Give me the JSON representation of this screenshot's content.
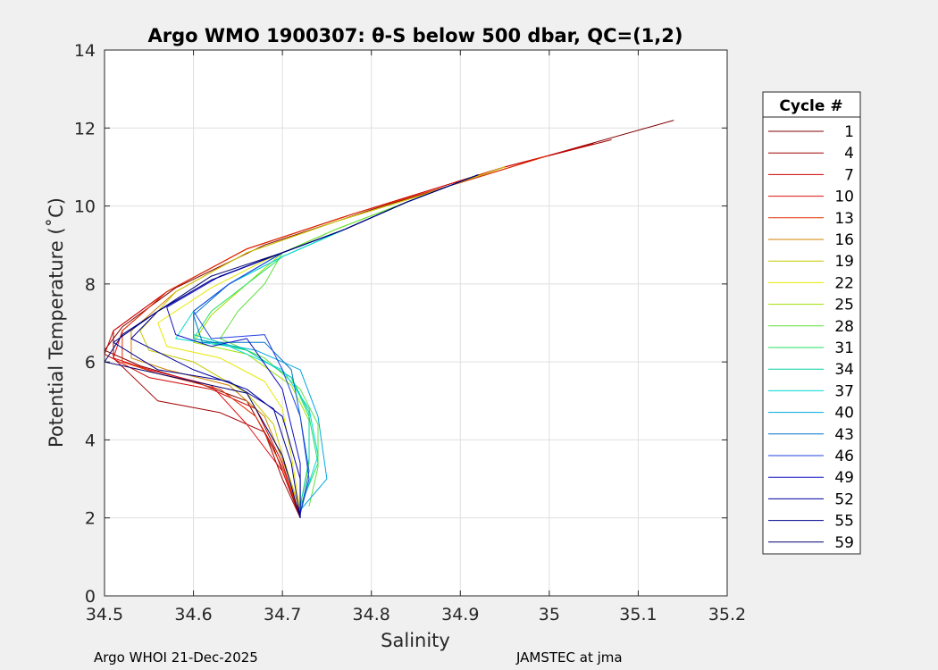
{
  "chart_data": {
    "type": "line",
    "title": "Argo WMO 1900307: θ-S below 500 dbar,  QC=(1,2)",
    "xlabel": "Salinity",
    "ylabel": "Potential Temperature (˚C)",
    "xlim": [
      34.5,
      35.2
    ],
    "ylim": [
      0,
      14
    ],
    "xticks": [
      "34.5",
      "34.6",
      "34.7",
      "34.8",
      "34.9",
      "35",
      "35.1",
      "35.2"
    ],
    "yticks": [
      "0",
      "2",
      "4",
      "6",
      "8",
      "10",
      "12",
      "14"
    ],
    "grid": true,
    "legend": {
      "title": "Cycle #",
      "placement": "outside-right"
    },
    "series": [
      {
        "name": "1",
        "color": "#800000",
        "x": [
          35.14,
          35.0,
          34.8,
          34.68,
          34.58,
          34.52,
          34.5,
          34.54,
          34.6,
          34.66,
          34.69,
          34.72
        ],
        "y": [
          12.2,
          11.3,
          9.9,
          9.0,
          7.9,
          6.9,
          6.3,
          5.9,
          5.5,
          5.0,
          3.8,
          2.0
        ]
      },
      {
        "name": "4",
        "color": "#a00000",
        "x": [
          35.07,
          34.95,
          34.78,
          34.66,
          34.57,
          34.51,
          34.51,
          34.56,
          34.63,
          34.68,
          34.7,
          34.72
        ],
        "y": [
          11.7,
          11.0,
          9.8,
          8.9,
          7.8,
          6.8,
          6.1,
          5.0,
          4.7,
          4.2,
          3.0,
          2.0
        ]
      },
      {
        "name": "7",
        "color": "#d00000",
        "x": [
          35.05,
          34.95,
          34.78,
          34.66,
          34.57,
          34.51,
          34.5,
          34.55,
          34.62,
          34.67,
          34.7,
          34.72
        ],
        "y": [
          11.6,
          11.0,
          9.8,
          8.9,
          7.8,
          6.8,
          6.2,
          5.6,
          5.3,
          4.8,
          3.4,
          2.0
        ]
      },
      {
        "name": "10",
        "color": "#e01010",
        "x": [
          35.0,
          34.9,
          34.78,
          34.66,
          34.57,
          34.52,
          34.51,
          34.55,
          34.62,
          34.66,
          34.7,
          34.72
        ],
        "y": [
          11.3,
          10.6,
          9.8,
          8.9,
          7.8,
          6.8,
          6.1,
          5.8,
          5.4,
          4.4,
          3.2,
          2.1
        ]
      },
      {
        "name": "13",
        "color": "#e03000",
        "x": [
          35.0,
          34.9,
          34.78,
          34.66,
          34.57,
          34.52,
          34.52,
          34.56,
          34.63,
          34.67,
          34.7,
          34.72
        ],
        "y": [
          11.3,
          10.6,
          9.8,
          8.9,
          7.8,
          6.8,
          6.0,
          5.7,
          5.3,
          4.6,
          3.3,
          2.1
        ]
      },
      {
        "name": "16",
        "color": "#d08000",
        "x": [
          34.95,
          34.86,
          34.76,
          34.66,
          34.58,
          34.53,
          34.53,
          34.57,
          34.64,
          34.68,
          34.7,
          34.72
        ],
        "y": [
          11.0,
          10.3,
          9.6,
          8.8,
          7.8,
          6.8,
          6.1,
          5.8,
          5.4,
          4.6,
          3.5,
          2.2
        ]
      },
      {
        "name": "19",
        "color": "#c8c800",
        "x": [
          34.95,
          34.86,
          34.76,
          34.66,
          34.58,
          34.54,
          34.55,
          34.6,
          34.66,
          34.69,
          34.7,
          34.72
        ],
        "y": [
          11.0,
          10.3,
          9.6,
          8.8,
          7.8,
          6.8,
          6.3,
          6.0,
          5.2,
          4.4,
          3.6,
          2.2
        ]
      },
      {
        "name": "22",
        "color": "#e8e800",
        "x": [
          34.92,
          34.84,
          34.76,
          34.68,
          34.62,
          34.56,
          34.57,
          34.63,
          34.68,
          34.7,
          34.71,
          34.72
        ],
        "y": [
          10.8,
          10.1,
          9.4,
          8.6,
          7.9,
          7.0,
          6.4,
          6.1,
          5.5,
          4.8,
          3.6,
          2.2
        ]
      },
      {
        "name": "25",
        "color": "#a0e000",
        "x": [
          34.92,
          34.84,
          34.76,
          34.7,
          34.66,
          34.62,
          34.6,
          34.66,
          34.71,
          34.73,
          34.73,
          34.72
        ],
        "y": [
          10.8,
          10.1,
          9.4,
          8.8,
          8.0,
          7.2,
          6.5,
          6.2,
          5.4,
          4.5,
          3.4,
          2.3
        ]
      },
      {
        "name": "28",
        "color": "#60e040",
        "x": [
          34.92,
          34.84,
          34.76,
          34.7,
          34.68,
          34.65,
          34.63,
          34.68,
          34.72,
          34.74,
          34.74,
          34.73
        ],
        "y": [
          10.8,
          10.1,
          9.4,
          8.8,
          8.0,
          7.3,
          6.6,
          6.1,
          5.3,
          4.4,
          3.3,
          2.3
        ]
      },
      {
        "name": "31",
        "color": "#20e060",
        "x": [
          34.92,
          34.84,
          34.77,
          34.7,
          34.66,
          34.62,
          34.6,
          34.66,
          34.71,
          34.73,
          34.74,
          34.72
        ],
        "y": [
          10.8,
          10.1,
          9.4,
          8.7,
          8.0,
          7.3,
          6.6,
          6.3,
          5.6,
          4.6,
          3.4,
          2.3
        ]
      },
      {
        "name": "34",
        "color": "#00d0a0",
        "x": [
          34.92,
          34.84,
          34.77,
          34.7,
          34.64,
          34.6,
          34.6,
          34.66,
          34.71,
          34.73,
          34.73,
          34.72
        ],
        "y": [
          10.8,
          10.1,
          9.4,
          8.7,
          8.0,
          7.3,
          6.7,
          6.3,
          5.6,
          4.7,
          3.5,
          2.3
        ]
      },
      {
        "name": "37",
        "color": "#00d8d8",
        "x": [
          34.92,
          34.84,
          34.77,
          34.7,
          34.64,
          34.6,
          34.58,
          34.64,
          34.7,
          34.73,
          34.74,
          34.72
        ],
        "y": [
          10.8,
          10.1,
          9.4,
          8.7,
          8.0,
          7.3,
          6.6,
          6.4,
          5.8,
          4.8,
          3.6,
          2.2
        ]
      },
      {
        "name": "40",
        "color": "#00a8e0",
        "x": [
          34.92,
          34.84,
          34.77,
          34.7,
          34.64,
          34.6,
          34.6,
          34.67,
          34.72,
          34.74,
          34.75,
          34.72
        ],
        "y": [
          10.8,
          10.1,
          9.4,
          8.8,
          8.0,
          7.3,
          6.6,
          6.3,
          5.8,
          4.6,
          3.0,
          2.2
        ]
      },
      {
        "name": "43",
        "color": "#0070c8",
        "x": [
          34.92,
          34.84,
          34.77,
          34.7,
          34.64,
          34.6,
          34.61,
          34.68,
          34.71,
          34.72,
          34.73,
          34.72
        ],
        "y": [
          10.8,
          10.1,
          9.4,
          8.8,
          8.0,
          7.2,
          6.5,
          6.5,
          5.8,
          4.6,
          3.2,
          2.1
        ]
      },
      {
        "name": "46",
        "color": "#2040e0",
        "x": [
          34.92,
          34.84,
          34.77,
          34.7,
          34.64,
          34.6,
          34.62,
          34.68,
          34.7,
          34.72,
          34.73,
          34.72
        ],
        "y": [
          10.8,
          10.1,
          9.4,
          8.8,
          8.0,
          7.3,
          6.6,
          6.7,
          5.8,
          4.6,
          3.0,
          2.1
        ]
      },
      {
        "name": "49",
        "color": "#1010c0",
        "x": [
          34.92,
          34.84,
          34.77,
          34.7,
          34.63,
          34.57,
          34.58,
          34.62,
          34.66,
          34.7,
          34.72,
          34.72
        ],
        "y": [
          10.8,
          10.1,
          9.4,
          8.8,
          8.2,
          7.4,
          6.7,
          6.4,
          6.6,
          5.3,
          3.4,
          2.0
        ]
      },
      {
        "name": "52",
        "color": "#0000a0",
        "x": [
          34.92,
          34.84,
          34.77,
          34.7,
          34.62,
          34.56,
          34.53,
          34.6,
          34.66,
          34.7,
          34.72,
          34.72
        ],
        "y": [
          10.8,
          10.1,
          9.4,
          8.8,
          8.1,
          7.3,
          6.6,
          5.8,
          5.3,
          4.6,
          3.0,
          2.0
        ]
      },
      {
        "name": "55",
        "color": "#000090",
        "x": [
          34.92,
          34.84,
          34.77,
          34.7,
          34.62,
          34.56,
          34.51,
          34.56,
          34.64,
          34.69,
          34.71,
          34.72
        ],
        "y": [
          10.8,
          10.1,
          9.4,
          8.8,
          8.1,
          7.3,
          6.5,
          5.8,
          5.5,
          4.8,
          3.4,
          2.0
        ]
      },
      {
        "name": "59",
        "color": "#000070",
        "x": [
          34.92,
          34.84,
          34.77,
          34.7,
          34.62,
          34.56,
          34.52,
          34.5,
          34.58,
          34.66,
          34.7,
          34.72
        ],
        "y": [
          10.8,
          10.1,
          9.4,
          8.8,
          8.2,
          7.3,
          6.7,
          6.0,
          5.6,
          5.2,
          3.6,
          2.0
        ]
      }
    ]
  },
  "footer": {
    "left": "Argo WHOI 21-Dec-2025",
    "right": "JAMSTEC at jma"
  }
}
